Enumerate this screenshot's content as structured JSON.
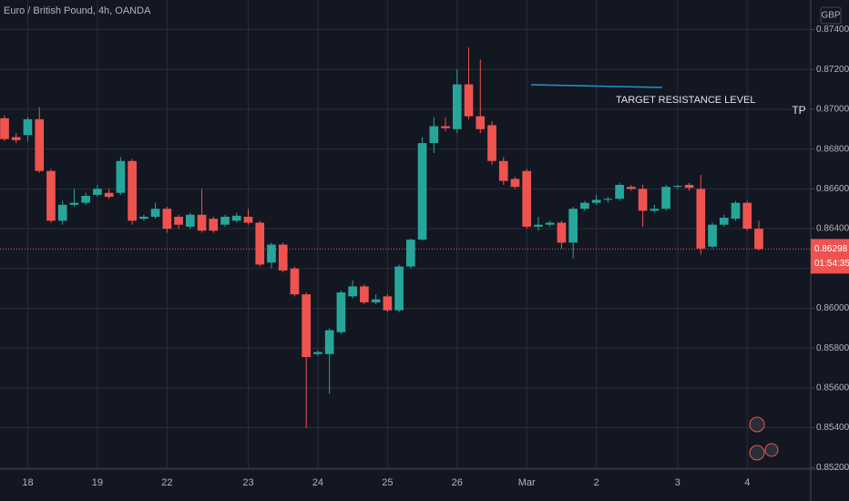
{
  "chart_data": {
    "type": "candlestick",
    "title": "Euro / British Pound, 4h, OANDA",
    "currency": "GBP",
    "annotation": "TARGET RESISTANCE LEVEL",
    "tp_label": "TP",
    "last_price": 0.86298,
    "countdown": "01:54:35",
    "up_color": "#26a69a",
    "down_color": "#ef5350",
    "categories": [
      null,
      null,
      "18",
      null,
      null,
      null,
      null,
      null,
      "19",
      null,
      null,
      null,
      null,
      null,
      "22",
      null,
      null,
      null,
      null,
      null,
      null,
      "23",
      null,
      null,
      null,
      null,
      null,
      "24",
      null,
      null,
      null,
      null,
      null,
      "25",
      null,
      null,
      null,
      null,
      null,
      "26",
      null,
      null,
      null,
      null,
      null,
      "Mar",
      null,
      null,
      null,
      null,
      null,
      "2",
      null,
      null,
      null,
      null,
      null,
      null,
      "3",
      null,
      null,
      null,
      null,
      null,
      "4",
      null
    ],
    "open": [
      0.86955,
      0.8686,
      0.8687,
      0.8695,
      0.8669,
      0.8644,
      0.8652,
      0.8653,
      0.8657,
      0.8658,
      0.8658,
      0.8674,
      0.8645,
      0.8646,
      0.865,
      0.8646,
      0.8641,
      0.8647,
      0.8645,
      0.8642,
      0.8644,
      0.8646,
      0.8643,
      0.8623,
      0.8632,
      0.862,
      0.8607,
      0.8577,
      0.8577,
      0.8588,
      0.8606,
      0.8611,
      0.8603,
      0.8606,
      0.8599,
      0.8621,
      0.86345,
      0.8683,
      0.86915,
      0.869,
      0.87125,
      0.86965,
      0.8692,
      0.8674,
      0.8665,
      0.8669,
      0.8641,
      0.8642,
      0.8643,
      0.8633,
      0.865,
      0.8653,
      0.86545,
      0.8655,
      0.8661,
      0.866,
      0.8649,
      0.865,
      0.8661,
      0.8662,
      0.866,
      0.8631,
      0.8642,
      0.8645,
      0.8653,
      0.864
    ],
    "high": [
      0.8697,
      0.8688,
      0.8696,
      0.8701,
      0.867,
      0.8654,
      0.866,
      0.8658,
      0.8662,
      0.866,
      0.8676,
      0.8675,
      0.8647,
      0.8653,
      0.8651,
      0.8647,
      0.8648,
      0.866,
      0.8646,
      0.8647,
      0.8648,
      0.865,
      0.8644,
      0.8633,
      0.8633,
      0.8621,
      0.8608,
      0.8579,
      0.859,
      0.8609,
      0.8614,
      0.8612,
      0.8607,
      0.8607,
      0.8622,
      0.8635,
      0.8686,
      0.8696,
      0.8696,
      0.872,
      0.8731,
      0.8725,
      0.8694,
      0.8676,
      0.8666,
      0.867,
      0.8646,
      0.8644,
      0.8644,
      0.8651,
      0.8654,
      0.8657,
      0.8656,
      0.8663,
      0.8662,
      0.8662,
      0.8652,
      0.8662,
      0.8662,
      0.8663,
      0.8667,
      0.8643,
      0.8647,
      0.8654,
      0.8654,
      0.8644
    ],
    "low": [
      0.8684,
      0.8683,
      0.8684,
      0.8668,
      0.8643,
      0.8642,
      0.8651,
      0.8652,
      0.8656,
      0.8655,
      0.8657,
      0.8642,
      0.8644,
      0.8645,
      0.8638,
      0.864,
      0.864,
      0.8638,
      0.8638,
      0.8641,
      0.8643,
      0.8642,
      0.8621,
      0.862,
      0.8618,
      0.8606,
      0.854,
      0.8576,
      0.8557,
      0.8587,
      0.8605,
      0.8602,
      0.8602,
      0.8598,
      0.8598,
      0.862,
      0.8634,
      0.8678,
      0.8689,
      0.8688,
      0.8695,
      0.8688,
      0.8672,
      0.8662,
      0.866,
      0.864,
      0.8639,
      0.8641,
      0.863,
      0.8625,
      0.8649,
      0.8652,
      0.8653,
      0.8654,
      0.8659,
      0.8641,
      0.8648,
      0.8649,
      0.866,
      0.8659,
      0.8627,
      0.863,
      0.8641,
      0.8644,
      0.8639,
      0.8629
    ],
    "close": [
      0.8685,
      0.86845,
      0.8695,
      0.8669,
      0.8644,
      0.8652,
      0.8653,
      0.86565,
      0.866,
      0.8656,
      0.8674,
      0.8644,
      0.8646,
      0.865,
      0.864,
      0.8642,
      0.8647,
      0.8639,
      0.8639,
      0.8646,
      0.86465,
      0.8643,
      0.8622,
      0.8632,
      0.8619,
      0.8607,
      0.85755,
      0.8578,
      0.8589,
      0.8608,
      0.8611,
      0.8603,
      0.86045,
      0.8599,
      0.8621,
      0.86345,
      0.8683,
      0.86915,
      0.86905,
      0.87125,
      0.86965,
      0.869,
      0.8674,
      0.8664,
      0.8661,
      0.8641,
      0.8642,
      0.8643,
      0.8633,
      0.865,
      0.8653,
      0.86545,
      0.8655,
      0.8662,
      0.866,
      0.8649,
      0.865,
      0.8661,
      0.86615,
      0.86605,
      0.863,
      0.8642,
      0.86455,
      0.8653,
      0.864,
      0.86298
    ],
    "ylim": [
      0.85192,
      0.87549
    ],
    "yticks": [
      {
        "value": 0.852,
        "label": "0.85200"
      },
      {
        "value": 0.854,
        "label": "0.85400"
      },
      {
        "value": 0.856,
        "label": "0.85600"
      },
      {
        "value": 0.858,
        "label": "0.85800"
      },
      {
        "value": 0.86,
        "label": "0.86000"
      },
      {
        "value": 0.862,
        "label": "0.86200"
      },
      {
        "value": 0.864,
        "label": "0.86400"
      },
      {
        "value": 0.866,
        "label": "0.86600"
      },
      {
        "value": 0.868,
        "label": "0.86800"
      },
      {
        "value": 0.87,
        "label": "0.87000"
      },
      {
        "value": 0.872,
        "label": "0.87200"
      },
      {
        "value": 0.874,
        "label": "0.87400"
      }
    ],
    "grid": true
  }
}
